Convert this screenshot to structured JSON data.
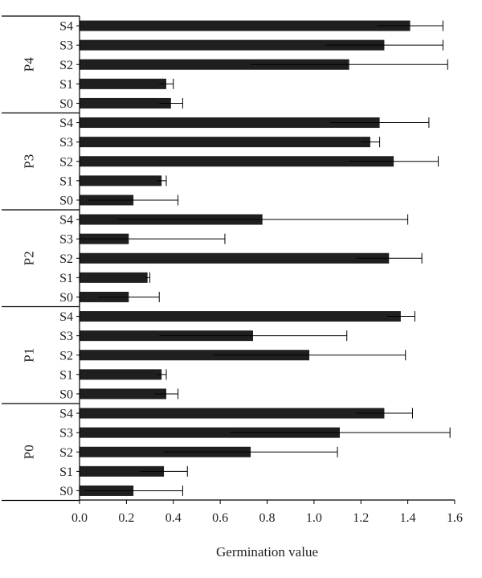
{
  "chart_data": {
    "type": "bar",
    "orientation": "horizontal",
    "title": "",
    "xlabel": "Germination value",
    "ylabel": "",
    "xlim": [
      0,
      1.6
    ],
    "xticks": [
      0.0,
      0.2,
      0.4,
      0.6,
      0.8,
      1.0,
      1.2,
      1.4,
      1.6
    ],
    "xtick_labels": [
      "0.0",
      "0.2",
      "0.4",
      "0.6",
      "0.8",
      "1.0",
      "1.2",
      "1.4",
      "1.6"
    ],
    "grid": false,
    "bar_color": "#1f1f1f",
    "groups": [
      {
        "label": "P4",
        "bars": [
          {
            "label": "S4",
            "value": 1.41,
            "error": 0.14
          },
          {
            "label": "S3",
            "value": 1.3,
            "error": 0.25
          },
          {
            "label": "S2",
            "value": 1.15,
            "error": 0.42
          },
          {
            "label": "S1",
            "value": 0.37,
            "error": 0.03
          },
          {
            "label": "S0",
            "value": 0.39,
            "error": 0.05
          }
        ]
      },
      {
        "label": "P3",
        "bars": [
          {
            "label": "S4",
            "value": 1.28,
            "error": 0.21
          },
          {
            "label": "S3",
            "value": 1.24,
            "error": 0.04
          },
          {
            "label": "S2",
            "value": 1.34,
            "error": 0.19
          },
          {
            "label": "S1",
            "value": 0.35,
            "error": 0.02
          },
          {
            "label": "S0",
            "value": 0.23,
            "error": 0.19
          }
        ]
      },
      {
        "label": "P2",
        "bars": [
          {
            "label": "S4",
            "value": 0.78,
            "error": 0.62
          },
          {
            "label": "S3",
            "value": 0.21,
            "error": 0.41
          },
          {
            "label": "S2",
            "value": 1.32,
            "error": 0.14
          },
          {
            "label": "S1",
            "value": 0.29,
            "error": 0.01
          },
          {
            "label": "S0",
            "value": 0.21,
            "error": 0.13
          }
        ]
      },
      {
        "label": "P1",
        "bars": [
          {
            "label": "S4",
            "value": 1.37,
            "error": 0.06
          },
          {
            "label": "S3",
            "value": 0.74,
            "error": 0.4
          },
          {
            "label": "S2",
            "value": 0.98,
            "error": 0.41
          },
          {
            "label": "S1",
            "value": 0.35,
            "error": 0.02
          },
          {
            "label": "S0",
            "value": 0.37,
            "error": 0.05
          }
        ]
      },
      {
        "label": "P0",
        "bars": [
          {
            "label": "S4",
            "value": 1.3,
            "error": 0.12
          },
          {
            "label": "S3",
            "value": 1.11,
            "error": 0.47
          },
          {
            "label": "S2",
            "value": 0.73,
            "error": 0.37
          },
          {
            "label": "S1",
            "value": 0.36,
            "error": 0.1
          },
          {
            "label": "S0",
            "value": 0.23,
            "error": 0.21
          }
        ]
      }
    ]
  }
}
